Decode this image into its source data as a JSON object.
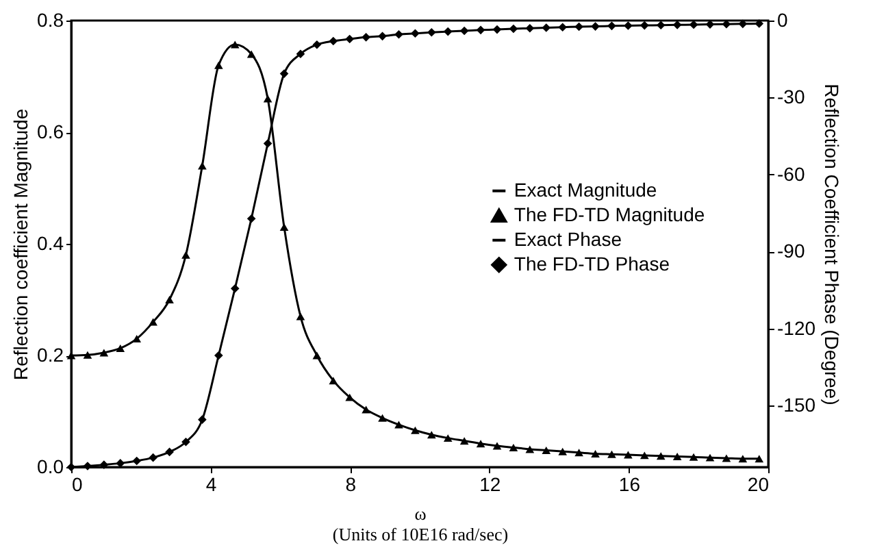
{
  "chart_data": {
    "type": "line",
    "xlabel": "ω\n(Units of 10E16 rad/sec)",
    "ylabel": "Reflection coefficient Magnitude",
    "y2label": "Reflection Coefficient Phase (Degree)",
    "x": [
      0,
      0.47,
      0.94,
      1.41,
      1.88,
      2.35,
      2.82,
      3.29,
      3.76,
      4.23,
      4.7,
      5.17,
      5.64,
      6.11,
      6.58,
      7.05,
      7.52,
      7.99,
      8.46,
      8.93,
      9.4,
      9.87,
      10.34,
      10.81,
      11.28,
      11.75,
      12.22,
      12.69,
      13.16,
      13.63,
      14.1,
      14.57,
      15.04,
      15.51,
      15.98,
      16.45,
      16.92,
      17.39,
      17.86,
      18.33,
      18.8,
      19.27,
      19.74
    ],
    "series": [
      {
        "name": "Exact Magnitude",
        "color": "#000000",
        "line_style": "solid",
        "marker": "none",
        "values": [
          0.2,
          0.201,
          0.205,
          0.213,
          0.23,
          0.26,
          0.3,
          0.38,
          0.54,
          0.72,
          0.757,
          0.74,
          0.66,
          0.43,
          0.27,
          0.2,
          0.155,
          0.125,
          0.103,
          0.088,
          0.076,
          0.066,
          0.058,
          0.052,
          0.047,
          0.042,
          0.038,
          0.035,
          0.032,
          0.03,
          0.028,
          0.026,
          0.024,
          0.023,
          0.022,
          0.021,
          0.02,
          0.019,
          0.018,
          0.017,
          0.016,
          0.015,
          0.015
        ]
      },
      {
        "name": "The FD-TD Magnitude",
        "type": "scatter",
        "color": "#000000",
        "marker": "triangle",
        "values": [
          0.2,
          0.201,
          0.205,
          0.213,
          0.23,
          0.26,
          0.3,
          0.38,
          0.54,
          0.72,
          0.757,
          0.74,
          0.66,
          0.43,
          0.27,
          0.2,
          0.155,
          0.125,
          0.103,
          0.088,
          0.076,
          0.066,
          0.058,
          0.052,
          0.047,
          0.042,
          0.038,
          0.035,
          0.032,
          0.03,
          0.028,
          0.026,
          0.024,
          0.023,
          0.022,
          0.021,
          0.02,
          0.019,
          0.018,
          0.017,
          0.016,
          0.015,
          0.015
        ]
      },
      {
        "name": "Exact Phase",
        "color": "#000000",
        "line_style": "solid",
        "marker": "none",
        "axis": "y2",
        "values": [
          -174,
          -173.6,
          -173.1,
          -172.5,
          -171.6,
          -170.3,
          -168.1,
          -164.2,
          -155.5,
          -130.5,
          -104.4,
          -77.2,
          -47.9,
          -20.7,
          -13,
          -9.4,
          -8,
          -7.2,
          -6.5,
          -6.1,
          -5.4,
          -5,
          -4.6,
          -4.3,
          -4,
          -3.7,
          -3.5,
          -3.2,
          -3,
          -2.8,
          -2.6,
          -2.4,
          -2.3,
          -2.1,
          -2,
          -1.9,
          -1.8,
          -1.7,
          -1.6,
          -1.5,
          -1.4,
          -1.3,
          -1.2
        ]
      },
      {
        "name": "The FD-TD Phase",
        "type": "scatter",
        "color": "#000000",
        "marker": "diamond",
        "axis": "y2",
        "values": [
          -174,
          -173.6,
          -173.1,
          -172.5,
          -171.6,
          -170.3,
          -168.1,
          -164.2,
          -155.5,
          -130.5,
          -104.4,
          -77.2,
          -47.9,
          -20.7,
          -13,
          -9.4,
          -8,
          -7.2,
          -6.5,
          -6.1,
          -5.4,
          -5,
          -4.6,
          -4.3,
          -4,
          -3.7,
          -3.5,
          -3.2,
          -3,
          -2.8,
          -2.6,
          -2.4,
          -2.3,
          -2.1,
          -2,
          -1.9,
          -1.8,
          -1.7,
          -1.6,
          -1.5,
          -1.4,
          -1.3,
          -1.2
        ]
      }
    ],
    "xlim": [
      0,
      20
    ],
    "xticks": [
      0,
      4,
      8,
      12,
      16,
      20
    ],
    "ylim": [
      0,
      0.8
    ],
    "yticks": [
      {
        "value": 0,
        "label": "0.0"
      },
      {
        "value": 0.2,
        "label": "0.2"
      },
      {
        "value": 0.4,
        "label": "0.4"
      },
      {
        "value": 0.6,
        "label": "0.6"
      },
      {
        "value": 0.8,
        "label": "0.8"
      }
    ],
    "y2lim": [
      -174,
      0
    ],
    "y2ticks": [
      -150,
      -120,
      -90,
      -60,
      -30,
      0
    ],
    "legend": "right",
    "grid": false
  }
}
